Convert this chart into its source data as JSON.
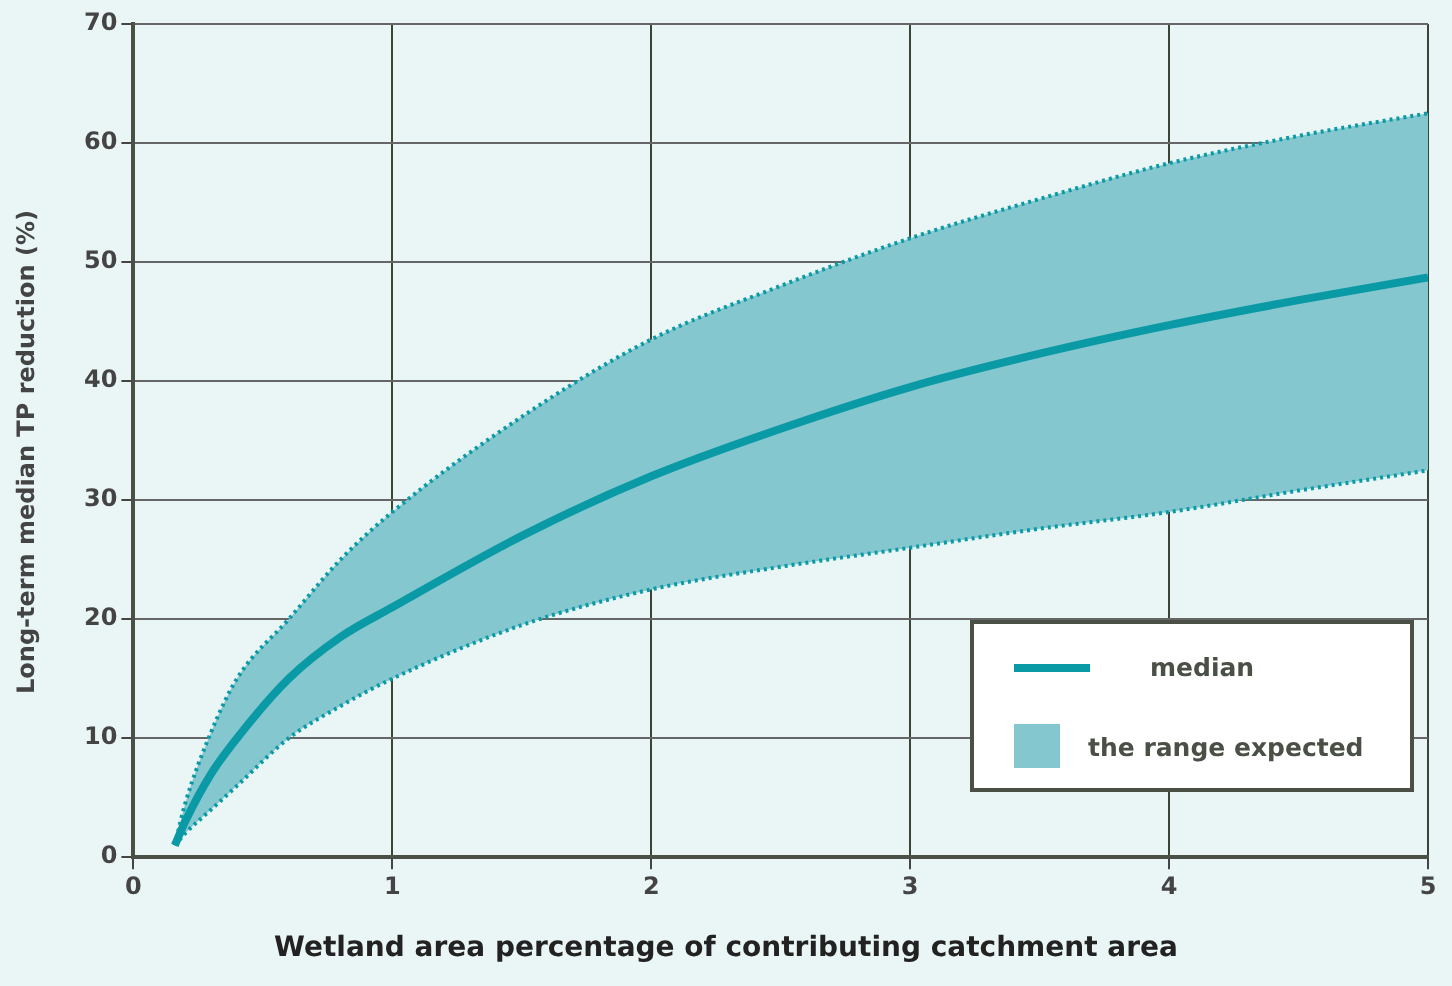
{
  "chart_data": {
    "type": "line",
    "xlabel": "Wetland area percentage of contributing catchment area",
    "ylabel": "Long-term median TP reduction (%)",
    "x": [
      0.16,
      0.2,
      0.3,
      0.4,
      0.6,
      0.8,
      1,
      1.5,
      2,
      2.5,
      3,
      3.5,
      4,
      4.5,
      5
    ],
    "series": [
      {
        "name": "median",
        "color": "#0a9aa6",
        "values": [
          1,
          3,
          7,
          10,
          15,
          18.5,
          21,
          27,
          32,
          36,
          39.5,
          42.3,
          44.7,
          46.8,
          48.7
        ]
      },
      {
        "color": "#0a9aa6",
        "line_style": "dotted",
        "values": [
          1,
          2,
          4,
          6,
          10,
          12.7,
          15,
          19.5,
          22.5,
          24.4,
          26,
          27.6,
          29,
          30.8,
          32.5
        ]
      },
      {
        "name": "the range expected",
        "type": "area",
        "color": "#85c7cf",
        "line_style": "dotted",
        "values": [
          1,
          4.5,
          10.5,
          15,
          20,
          25,
          29,
          37,
          43.5,
          48,
          52,
          55.3,
          58.3,
          60.6,
          62.5
        ]
      }
    ],
    "xlim": [
      0,
      5
    ],
    "xticks": [
      0,
      1,
      2,
      3,
      4,
      5
    ],
    "ylim": [
      0,
      70
    ],
    "yticks": [
      0,
      10,
      20,
      30,
      40,
      50,
      60,
      70
    ],
    "grid": true,
    "legend": "bottom right",
    "marker": "none"
  }
}
